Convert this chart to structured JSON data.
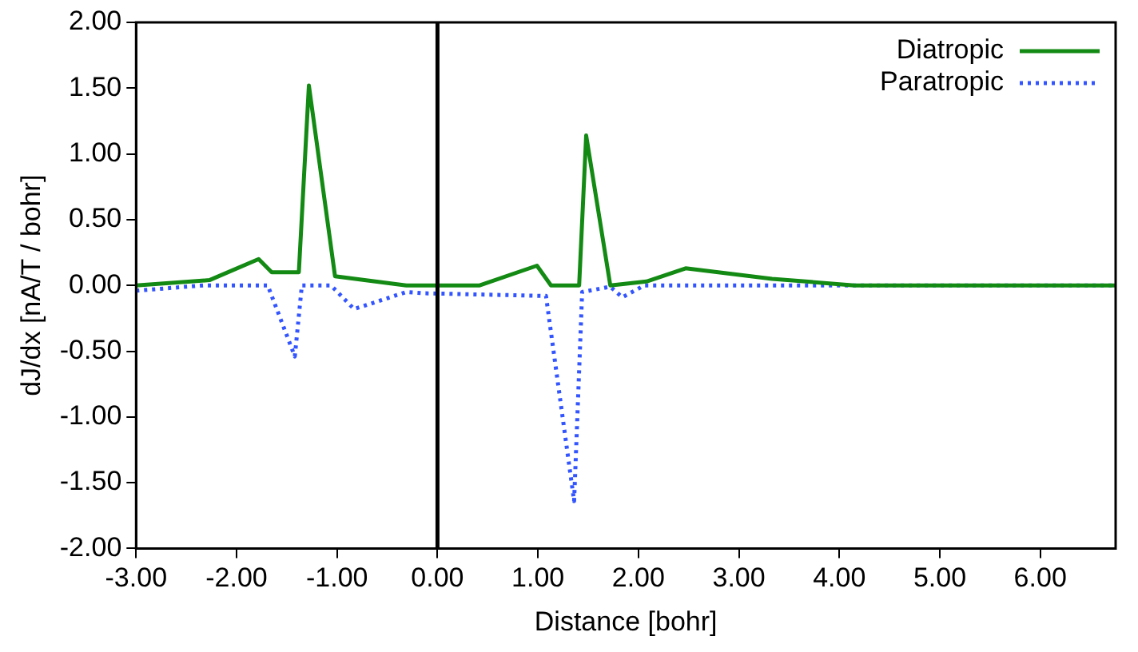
{
  "chart_data": {
    "type": "line",
    "xlabel": "Distance [bohr]",
    "ylabel": "dJ/dx [nA/T / bohr]",
    "xlim": [
      -3,
      6.75
    ],
    "ylim": [
      -2,
      2
    ],
    "xticks": [
      {
        "value": -3,
        "label": "-3.00"
      },
      {
        "value": -2,
        "label": "-2.00"
      },
      {
        "value": -1,
        "label": "-1.00"
      },
      {
        "value": 0,
        "label": "0.00"
      },
      {
        "value": 1,
        "label": "1.00"
      },
      {
        "value": 2,
        "label": "2.00"
      },
      {
        "value": 3,
        "label": "3.00"
      },
      {
        "value": 4,
        "label": "4.00"
      },
      {
        "value": 5,
        "label": "5.00"
      },
      {
        "value": 6,
        "label": "6.00"
      }
    ],
    "yticks": [
      {
        "value": -2,
        "label": "-2.00"
      },
      {
        "value": -1.5,
        "label": "-1.50"
      },
      {
        "value": -1,
        "label": "-1.00"
      },
      {
        "value": -0.5,
        "label": "-0.50"
      },
      {
        "value": 0,
        "label": "0.00"
      },
      {
        "value": 0.5,
        "label": "0.50"
      },
      {
        "value": 1,
        "label": "1.00"
      },
      {
        "value": 1.5,
        "label": "1.50"
      },
      {
        "value": 2,
        "label": "2.00"
      }
    ],
    "grid": false,
    "legend": "top right",
    "marker": "none",
    "ref_lines": [
      {
        "axis": "x",
        "value": 0,
        "label": null,
        "color": "#000000"
      }
    ],
    "series": [
      {
        "name": "Diatropic",
        "color": "#138a13",
        "line_style": "solid",
        "x": [
          -3,
          -2.27,
          -1.78,
          -1.65,
          -1.38,
          -1.28,
          -1.02,
          -0.31,
          0.42,
          0.99,
          1.13,
          1.41,
          1.48,
          1.72,
          2.08,
          2.47,
          3.33,
          4.15,
          6.75
        ],
        "values": [
          0,
          0.04,
          0.2,
          0.1,
          0.1,
          1.52,
          0.07,
          0,
          0,
          0.15,
          0,
          0,
          1.14,
          0,
          0.03,
          0.13,
          0.05,
          0,
          0
        ]
      },
      {
        "name": "Paratropic",
        "color": "#3355ff",
        "line_style": "dotted",
        "x": [
          -3,
          -2.33,
          -1.69,
          -1.42,
          -1.35,
          -1.06,
          -0.83,
          -0.31,
          -0.13,
          1.08,
          1.36,
          1.44,
          1.72,
          1.84,
          2.06,
          6.75
        ],
        "values": [
          -0.04,
          0,
          0,
          -0.54,
          0,
          0,
          -0.18,
          -0.05,
          -0.06,
          -0.08,
          -1.64,
          -0.05,
          -0.01,
          -0.09,
          0,
          0
        ]
      }
    ]
  }
}
